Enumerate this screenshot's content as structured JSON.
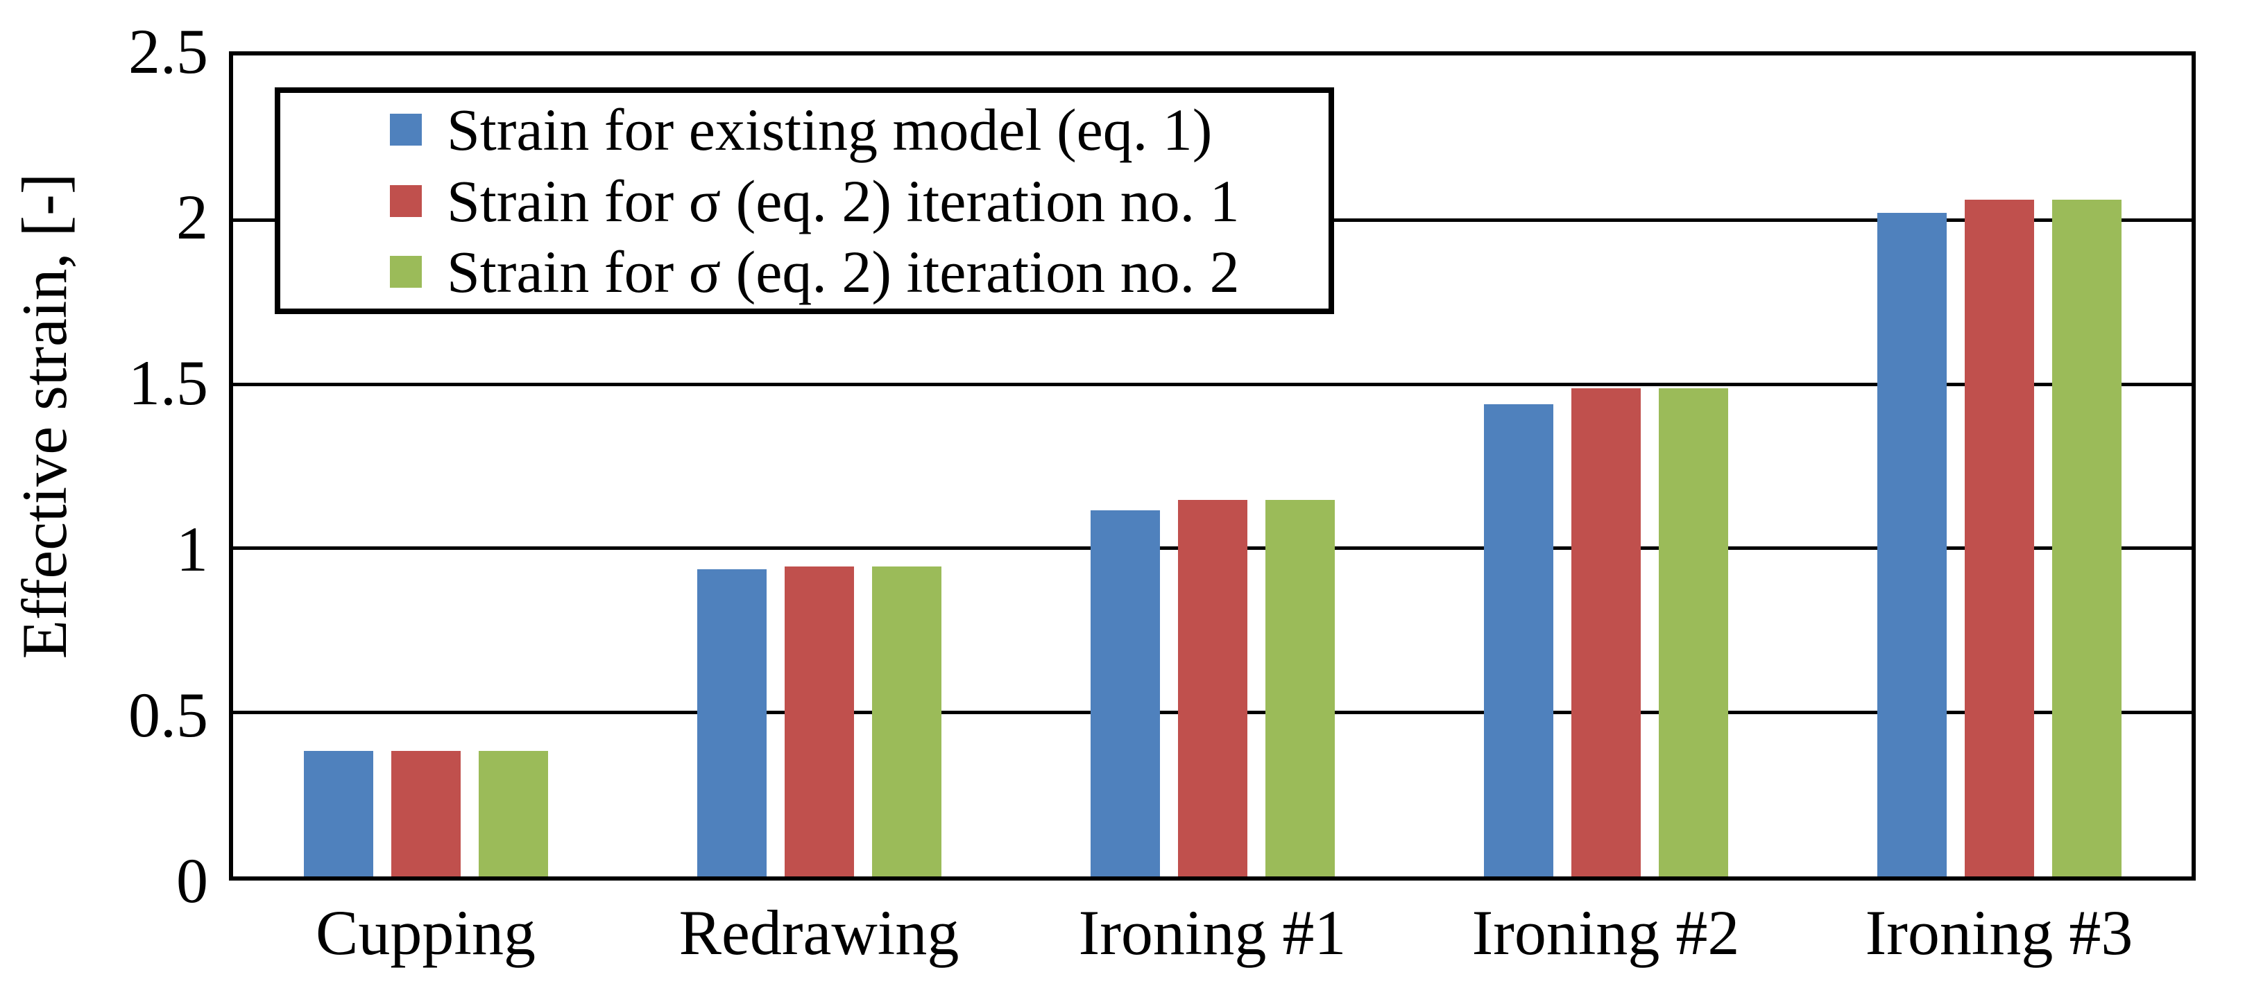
{
  "chart_data": {
    "type": "bar",
    "title": "",
    "xlabel": "",
    "ylabel": "Effective strain, [-]",
    "categories": [
      "Cupping",
      "Redrawing",
      "Ironing #1",
      "Ironing #2",
      "Ironing #3"
    ],
    "series": [
      {
        "name": "Strain for existing model (eq. 1)",
        "color": "#4F81BD",
        "values": [
          0.38,
          0.93,
          1.11,
          1.43,
          2.01
        ]
      },
      {
        "name": "Strain for σ (eq. 2) iteration no. 1",
        "color": "#C0504D",
        "values": [
          0.38,
          0.94,
          1.14,
          1.48,
          2.05
        ]
      },
      {
        "name": "Strain for σ (eq. 2) iteration no. 2",
        "color": "#9BBB59",
        "values": [
          0.38,
          0.94,
          1.14,
          1.48,
          2.05
        ]
      }
    ],
    "ylim": [
      0,
      2.5
    ],
    "ytick_step": 0.5,
    "yticks": [
      "0",
      "0.5",
      "1",
      "1.5",
      "2",
      "2.5"
    ],
    "grid": true,
    "gridline_values": [
      0.5,
      1,
      1.5,
      2
    ],
    "legend_position": "inside-top-left"
  },
  "colors": {
    "axis": "#000000",
    "grid": "#000000",
    "background": "#FFFFFF",
    "legend_border": "#000000"
  }
}
